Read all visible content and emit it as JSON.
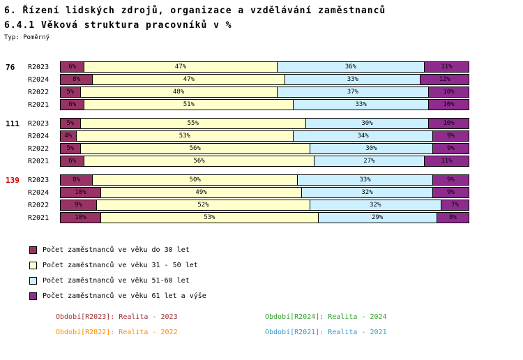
{
  "header": {
    "title": "6. Řízení lidských zdrojů, organizace a vzdělávání zaměstnanců",
    "subtitle": "6.4.1 Věková struktura pracovníků v %",
    "type_label": "Typ: Poměrný"
  },
  "chart_data": {
    "type": "bar",
    "variant": "horizontal-stacked",
    "unit": "%",
    "xlim": [
      0,
      100
    ],
    "series": [
      {
        "name": "Počet zaměstnanců ve věku do 30 let",
        "color": "#993366"
      },
      {
        "name": "Počet zaměstnanců ve věku 31 - 50 let",
        "color": "#FFFFCC"
      },
      {
        "name": "Počet zaměstnanců ve věku 51-60 let",
        "color": "#CCF0FF"
      },
      {
        "name": "Počet zaměstnanců ve věku 61 let a výše",
        "color": "#8E2C8E"
      }
    ],
    "groups": [
      {
        "label": "76",
        "label_color": "#000000",
        "rows": [
          {
            "period": "R2023",
            "values": [
              6,
              47,
              36,
              11
            ]
          },
          {
            "period": "R2024",
            "values": [
              8,
              47,
              33,
              12
            ]
          },
          {
            "period": "R2022",
            "values": [
              5,
              48,
              37,
              10
            ]
          },
          {
            "period": "R2021",
            "values": [
              6,
              51,
              33,
              10
            ]
          }
        ]
      },
      {
        "label": "111",
        "label_color": "#000000",
        "rows": [
          {
            "period": "R2023",
            "values": [
              5,
              55,
              30,
              10
            ]
          },
          {
            "period": "R2024",
            "values": [
              4,
              53,
              34,
              9
            ]
          },
          {
            "period": "R2022",
            "values": [
              5,
              56,
              30,
              9
            ]
          },
          {
            "period": "R2021",
            "values": [
              6,
              56,
              27,
              11
            ]
          }
        ]
      },
      {
        "label": "139",
        "label_color": "#CC0000",
        "rows": [
          {
            "period": "R2023",
            "values": [
              8,
              50,
              33,
              9
            ]
          },
          {
            "period": "R2024",
            "values": [
              10,
              49,
              32,
              9
            ]
          },
          {
            "period": "R2022",
            "values": [
              9,
              52,
              32,
              7
            ]
          },
          {
            "period": "R2021",
            "values": [
              10,
              53,
              29,
              8
            ]
          }
        ]
      }
    ]
  },
  "footer_legend": {
    "items": [
      {
        "label": "Období[R2023]:",
        "value": "Realita - 2023",
        "color": "#A03333"
      },
      {
        "label": "Období[R2024]:",
        "value": "Realita - 2024",
        "color": "#33A02C"
      },
      {
        "label": "Období[R2022]:",
        "value": "Realita - 2022",
        "color": "#FF8C00"
      },
      {
        "label": "Období[R2021]:",
        "value": "Realita - 2021",
        "color": "#3399CC"
      }
    ]
  }
}
